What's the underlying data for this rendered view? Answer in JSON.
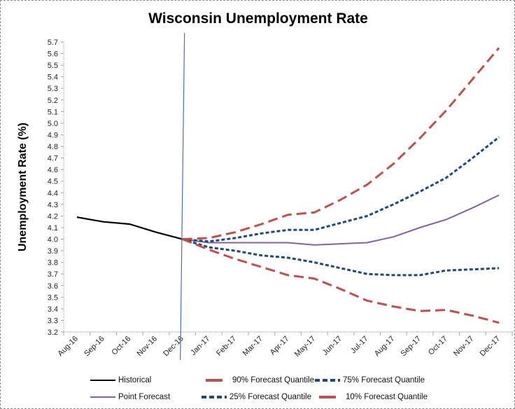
{
  "chart_data": {
    "type": "line",
    "title": "Wisconsin Unemployment Rate",
    "xlabel": "",
    "ylabel": "Unemployment Rate (%)",
    "ylim": [
      3.2,
      5.7
    ],
    "yticks": [
      "3.2",
      "3.3",
      "3.4",
      "3.5",
      "3.6",
      "3.7",
      "3.8",
      "3.9",
      "4.0",
      "4.1",
      "4.2",
      "4.3",
      "4.4",
      "4.5",
      "4.6",
      "4.7",
      "4.8",
      "4.9",
      "5.0",
      "5.1",
      "5.2",
      "5.3",
      "5.4",
      "5.5",
      "5.6",
      "5.7"
    ],
    "categories": [
      "Aug-16",
      "Sep-16",
      "Oct-16",
      "Nov-16",
      "Dec-16",
      "Jan-17",
      "Feb-17",
      "Mar-17",
      "Apr-17",
      "May-17",
      "Jun-17",
      "Jul-17",
      "Aug-17",
      "Sep-17",
      "Oct-17",
      "Nov-17",
      "Dec-17"
    ],
    "grid": false,
    "legend_position": "bottom",
    "vertical_marker": {
      "category": "Dec-16",
      "color": "#4472c4"
    },
    "series": [
      {
        "name": "Historical",
        "color": "#000000",
        "style": "solid",
        "values": [
          4.19,
          4.15,
          4.13,
          4.06,
          4.0,
          null,
          null,
          null,
          null,
          null,
          null,
          null,
          null,
          null,
          null,
          null,
          null
        ]
      },
      {
        "name": "90% Forecast Quantile",
        "color": "#c0504d",
        "style": "longdash",
        "values": [
          null,
          null,
          null,
          null,
          4.0,
          4.01,
          4.06,
          4.13,
          4.21,
          4.23,
          4.34,
          4.47,
          4.65,
          4.87,
          5.11,
          5.38,
          5.65
        ]
      },
      {
        "name": "75% Forecast Quantile",
        "color": "#1f497d",
        "style": "dash",
        "values": [
          null,
          null,
          null,
          null,
          4.0,
          3.98,
          4.01,
          4.05,
          4.08,
          4.08,
          4.14,
          4.2,
          4.3,
          4.41,
          4.53,
          4.7,
          4.88
        ]
      },
      {
        "name": "Point Forecast",
        "color": "#8064a2",
        "style": "solid",
        "values": [
          null,
          null,
          null,
          null,
          4.0,
          3.97,
          3.97,
          3.97,
          3.97,
          3.95,
          3.96,
          3.97,
          4.02,
          4.1,
          4.17,
          4.27,
          4.38
        ]
      },
      {
        "name": "25% Forecast Quantile",
        "color": "#1f497d",
        "style": "dash",
        "values": [
          null,
          null,
          null,
          null,
          4.0,
          3.93,
          3.9,
          3.86,
          3.84,
          3.8,
          3.75,
          3.7,
          3.69,
          3.69,
          3.73,
          3.74,
          3.75
        ]
      },
      {
        "name": "10% Forecast Quantile",
        "color": "#c0504d",
        "style": "longdash",
        "values": [
          null,
          null,
          null,
          null,
          4.0,
          3.91,
          3.83,
          3.76,
          3.69,
          3.66,
          3.57,
          3.47,
          3.42,
          3.38,
          3.39,
          3.34,
          3.28
        ]
      }
    ]
  },
  "legend": [
    {
      "label": "Historical",
      "series": 0
    },
    {
      "label": "90% Forecast Quantile",
      "series": 1
    },
    {
      "label": "75% Forecast Quantile",
      "series": 2
    },
    {
      "label": "Point Forecast",
      "series": 3
    },
    {
      "label": "25% Forecast Quantile",
      "series": 4
    },
    {
      "label": "10% Forecast Quantile",
      "series": 5
    }
  ]
}
